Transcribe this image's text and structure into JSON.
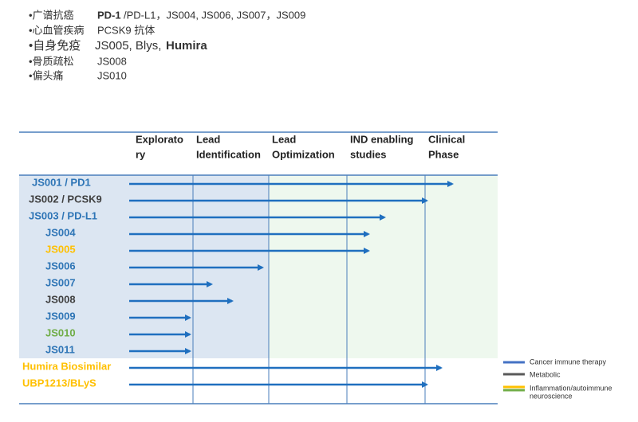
{
  "notes": [
    {
      "segments": [
        {
          "text": "•广谱抗癌",
          "bold": false
        },
        {
          "text": "PD-1",
          "bold": true
        },
        {
          "text": " /PD-L1，JS004, JS006, JS007，JS009",
          "bold": false
        }
      ]
    },
    {
      "segments": [
        {
          "text": "•心血管疾病",
          "bold": false
        },
        {
          "text": "PCSK9 抗体",
          "bold": false
        }
      ]
    },
    {
      "segments": [
        {
          "text": "•自身免疫",
          "bold": false
        },
        {
          "text": "JS005, Blys, ",
          "bold": false
        },
        {
          "text": "Humira",
          "bold": true
        }
      ]
    },
    {
      "segments": [
        {
          "text": "•骨质疏松",
          "bold": false
        },
        {
          "text": "JS008",
          "bold": false
        }
      ]
    },
    {
      "segments": [
        {
          "text": "•偏头痛",
          "bold": false
        },
        {
          "text": "JS010",
          "bold": false
        }
      ]
    }
  ],
  "table": {
    "headers": [
      [
        "Explorato",
        "ry"
      ],
      [
        "Lead",
        "Identification"
      ],
      [
        "Lead",
        "Optimization"
      ],
      [
        "IND enabling",
        "studies"
      ],
      [
        "Clinical",
        "Phase"
      ]
    ],
    "rows": [
      {
        "label": "JS001 / PD1",
        "color": "#2e75b6"
      },
      {
        "label": "JS002 / PCSK9",
        "color": "#404040"
      },
      {
        "label": "JS003 / PD-L1",
        "color": "#2e75b6"
      },
      {
        "label": "JS004",
        "color": "#2e75b6"
      },
      {
        "label": "JS005",
        "color": "#ffc000"
      },
      {
        "label": "JS006",
        "color": "#2e75b6"
      },
      {
        "label": "JS007",
        "color": "#2e75b6"
      },
      {
        "label": "JS008",
        "color": "#404040"
      },
      {
        "label": "JS009",
        "color": "#2e75b6"
      },
      {
        "label": "JS010",
        "color": "#70ad47"
      },
      {
        "label": "JS011",
        "color": "#2e75b6"
      },
      {
        "label": "Humira Biosimilar",
        "color": "#ffc000"
      },
      {
        "label": "UBP1213/BLyS",
        "color": "#ffc000"
      }
    ]
  },
  "legend": [
    {
      "label": "Cancer immune therapy",
      "color": "#4472c4"
    },
    {
      "label": "Metabolic",
      "color": "#595959"
    },
    {
      "label": "Inflammation/autoimmune",
      "color": "#ffc000"
    },
    {
      "label": "neuroscience",
      "color": "#70ad47"
    }
  ]
}
